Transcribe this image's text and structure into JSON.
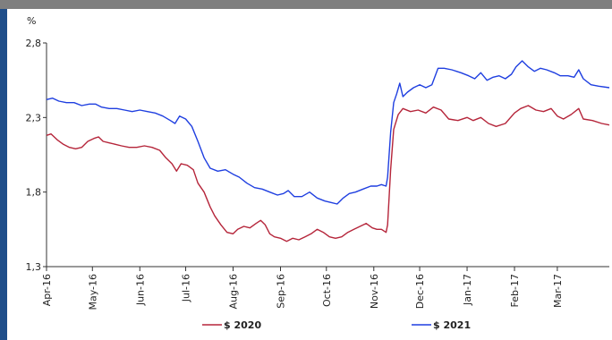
{
  "chart_data": {
    "type": "line",
    "unit_label": "%",
    "ylim": [
      1.3,
      2.8
    ],
    "y_ticks": [
      1.3,
      1.8,
      2.3,
      2.8
    ],
    "y_tick_labels": [
      "1,3",
      "1,8",
      "2,3",
      "2,8"
    ],
    "x_ticks": [
      "2016-04-01",
      "2016-05-01",
      "2016-06-01",
      "2016-07-01",
      "2016-08-01",
      "2016-09-01",
      "2016-10-01",
      "2016-11-01",
      "2016-12-01",
      "2017-01-01",
      "2017-02-01",
      "2017-03-01"
    ],
    "x_tick_labels": [
      "Apr-16",
      "May-16",
      "Jun-16",
      "Jul-16",
      "Aug-16",
      "Sep-16",
      "Oct-16",
      "Nov-16",
      "Dec-16",
      "Jan-17",
      "Feb-17",
      "Mar-17"
    ],
    "xlim": [
      "2016-04-01",
      "2017-04-04"
    ],
    "grid": false,
    "legend_position": "bottom",
    "series": [
      {
        "name": "$ 2020",
        "color": "#b5253a",
        "points": [
          [
            "2016-04-01",
            2.18
          ],
          [
            "2016-04-04",
            2.19
          ],
          [
            "2016-04-08",
            2.15
          ],
          [
            "2016-04-12",
            2.12
          ],
          [
            "2016-04-16",
            2.1
          ],
          [
            "2016-04-20",
            2.09
          ],
          [
            "2016-04-24",
            2.1
          ],
          [
            "2016-04-28",
            2.14
          ],
          [
            "2016-05-02",
            2.16
          ],
          [
            "2016-05-05",
            2.17
          ],
          [
            "2016-05-08",
            2.14
          ],
          [
            "2016-05-12",
            2.13
          ],
          [
            "2016-05-16",
            2.12
          ],
          [
            "2016-05-20",
            2.11
          ],
          [
            "2016-05-25",
            2.1
          ],
          [
            "2016-05-30",
            2.1
          ],
          [
            "2016-06-04",
            2.11
          ],
          [
            "2016-06-09",
            2.1
          ],
          [
            "2016-06-14",
            2.08
          ],
          [
            "2016-06-18",
            2.03
          ],
          [
            "2016-06-22",
            1.99
          ],
          [
            "2016-06-25",
            1.94
          ],
          [
            "2016-06-28",
            1.99
          ],
          [
            "2016-07-02",
            1.98
          ],
          [
            "2016-07-06",
            1.95
          ],
          [
            "2016-07-09",
            1.86
          ],
          [
            "2016-07-13",
            1.8
          ],
          [
            "2016-07-17",
            1.7
          ],
          [
            "2016-07-20",
            1.64
          ],
          [
            "2016-07-24",
            1.58
          ],
          [
            "2016-07-28",
            1.53
          ],
          [
            "2016-08-01",
            1.52
          ],
          [
            "2016-08-04",
            1.55
          ],
          [
            "2016-08-08",
            1.57
          ],
          [
            "2016-08-12",
            1.56
          ],
          [
            "2016-08-16",
            1.59
          ],
          [
            "2016-08-19",
            1.61
          ],
          [
            "2016-08-22",
            1.58
          ],
          [
            "2016-08-25",
            1.52
          ],
          [
            "2016-08-28",
            1.5
          ],
          [
            "2016-09-01",
            1.49
          ],
          [
            "2016-09-05",
            1.47
          ],
          [
            "2016-09-09",
            1.49
          ],
          [
            "2016-09-13",
            1.48
          ],
          [
            "2016-09-17",
            1.5
          ],
          [
            "2016-09-21",
            1.52
          ],
          [
            "2016-09-25",
            1.55
          ],
          [
            "2016-09-29",
            1.53
          ],
          [
            "2016-10-03",
            1.5
          ],
          [
            "2016-10-07",
            1.49
          ],
          [
            "2016-10-11",
            1.5
          ],
          [
            "2016-10-15",
            1.53
          ],
          [
            "2016-10-19",
            1.55
          ],
          [
            "2016-10-23",
            1.57
          ],
          [
            "2016-10-27",
            1.59
          ],
          [
            "2016-10-31",
            1.56
          ],
          [
            "2016-11-03",
            1.55
          ],
          [
            "2016-11-06",
            1.55
          ],
          [
            "2016-11-09",
            1.53
          ],
          [
            "2016-11-10",
            1.58
          ],
          [
            "2016-11-12",
            1.95
          ],
          [
            "2016-11-14",
            2.22
          ],
          [
            "2016-11-17",
            2.32
          ],
          [
            "2016-11-20",
            2.36
          ],
          [
            "2016-11-25",
            2.34
          ],
          [
            "2016-11-30",
            2.35
          ],
          [
            "2016-12-05",
            2.33
          ],
          [
            "2016-12-10",
            2.37
          ],
          [
            "2016-12-15",
            2.35
          ],
          [
            "2016-12-20",
            2.29
          ],
          [
            "2016-12-26",
            2.28
          ],
          [
            "2017-01-01",
            2.3
          ],
          [
            "2017-01-05",
            2.28
          ],
          [
            "2017-01-10",
            2.3
          ],
          [
            "2017-01-15",
            2.26
          ],
          [
            "2017-01-20",
            2.24
          ],
          [
            "2017-01-26",
            2.26
          ],
          [
            "2017-02-01",
            2.33
          ],
          [
            "2017-02-05",
            2.36
          ],
          [
            "2017-02-10",
            2.38
          ],
          [
            "2017-02-15",
            2.35
          ],
          [
            "2017-02-20",
            2.34
          ],
          [
            "2017-02-25",
            2.36
          ],
          [
            "2017-03-01",
            2.31
          ],
          [
            "2017-03-05",
            2.29
          ],
          [
            "2017-03-10",
            2.32
          ],
          [
            "2017-03-15",
            2.36
          ],
          [
            "2017-03-18",
            2.29
          ],
          [
            "2017-03-24",
            2.28
          ],
          [
            "2017-03-30",
            2.26
          ],
          [
            "2017-04-04",
            2.25
          ]
        ]
      },
      {
        "name": "$ 2021",
        "color": "#1f3fe0",
        "points": [
          [
            "2016-04-01",
            2.42
          ],
          [
            "2016-04-05",
            2.43
          ],
          [
            "2016-04-09",
            2.41
          ],
          [
            "2016-04-14",
            2.4
          ],
          [
            "2016-04-19",
            2.4
          ],
          [
            "2016-04-24",
            2.38
          ],
          [
            "2016-04-29",
            2.39
          ],
          [
            "2016-05-03",
            2.39
          ],
          [
            "2016-05-07",
            2.37
          ],
          [
            "2016-05-12",
            2.36
          ],
          [
            "2016-05-17",
            2.36
          ],
          [
            "2016-05-22",
            2.35
          ],
          [
            "2016-05-27",
            2.34
          ],
          [
            "2016-06-01",
            2.35
          ],
          [
            "2016-06-06",
            2.34
          ],
          [
            "2016-06-11",
            2.33
          ],
          [
            "2016-06-16",
            2.31
          ],
          [
            "2016-06-21",
            2.28
          ],
          [
            "2016-06-24",
            2.26
          ],
          [
            "2016-06-27",
            2.31
          ],
          [
            "2016-07-01",
            2.29
          ],
          [
            "2016-07-05",
            2.24
          ],
          [
            "2016-07-09",
            2.14
          ],
          [
            "2016-07-13",
            2.03
          ],
          [
            "2016-07-17",
            1.96
          ],
          [
            "2016-07-22",
            1.94
          ],
          [
            "2016-07-27",
            1.95
          ],
          [
            "2016-08-01",
            1.92
          ],
          [
            "2016-08-05",
            1.9
          ],
          [
            "2016-08-10",
            1.86
          ],
          [
            "2016-08-15",
            1.83
          ],
          [
            "2016-08-20",
            1.82
          ],
          [
            "2016-08-25",
            1.8
          ],
          [
            "2016-08-30",
            1.78
          ],
          [
            "2016-09-03",
            1.79
          ],
          [
            "2016-09-06",
            1.81
          ],
          [
            "2016-09-10",
            1.77
          ],
          [
            "2016-09-15",
            1.77
          ],
          [
            "2016-09-20",
            1.8
          ],
          [
            "2016-09-25",
            1.76
          ],
          [
            "2016-09-30",
            1.74
          ],
          [
            "2016-10-04",
            1.73
          ],
          [
            "2016-10-08",
            1.72
          ],
          [
            "2016-10-12",
            1.76
          ],
          [
            "2016-10-16",
            1.79
          ],
          [
            "2016-10-20",
            1.8
          ],
          [
            "2016-10-25",
            1.82
          ],
          [
            "2016-10-30",
            1.84
          ],
          [
            "2016-11-03",
            1.84
          ],
          [
            "2016-11-06",
            1.85
          ],
          [
            "2016-11-09",
            1.84
          ],
          [
            "2016-11-10",
            1.9
          ],
          [
            "2016-11-12",
            2.2
          ],
          [
            "2016-11-14",
            2.4
          ],
          [
            "2016-11-16",
            2.46
          ],
          [
            "2016-11-18",
            2.53
          ],
          [
            "2016-11-20",
            2.44
          ],
          [
            "2016-11-23",
            2.47
          ],
          [
            "2016-11-27",
            2.5
          ],
          [
            "2016-12-01",
            2.52
          ],
          [
            "2016-12-05",
            2.5
          ],
          [
            "2016-12-09",
            2.52
          ],
          [
            "2016-12-13",
            2.63
          ],
          [
            "2016-12-17",
            2.63
          ],
          [
            "2016-12-22",
            2.62
          ],
          [
            "2016-12-28",
            2.6
          ],
          [
            "2017-01-02",
            2.58
          ],
          [
            "2017-01-06",
            2.56
          ],
          [
            "2017-01-10",
            2.6
          ],
          [
            "2017-01-14",
            2.55
          ],
          [
            "2017-01-18",
            2.57
          ],
          [
            "2017-01-22",
            2.58
          ],
          [
            "2017-01-26",
            2.56
          ],
          [
            "2017-01-30",
            2.59
          ],
          [
            "2017-02-02",
            2.64
          ],
          [
            "2017-02-06",
            2.68
          ],
          [
            "2017-02-10",
            2.64
          ],
          [
            "2017-02-14",
            2.61
          ],
          [
            "2017-02-18",
            2.63
          ],
          [
            "2017-02-22",
            2.62
          ],
          [
            "2017-02-27",
            2.6
          ],
          [
            "2017-03-03",
            2.58
          ],
          [
            "2017-03-08",
            2.58
          ],
          [
            "2017-03-12",
            2.57
          ],
          [
            "2017-03-15",
            2.62
          ],
          [
            "2017-03-18",
            2.56
          ],
          [
            "2017-03-23",
            2.52
          ],
          [
            "2017-03-28",
            2.51
          ],
          [
            "2017-04-04",
            2.5
          ]
        ]
      }
    ]
  }
}
